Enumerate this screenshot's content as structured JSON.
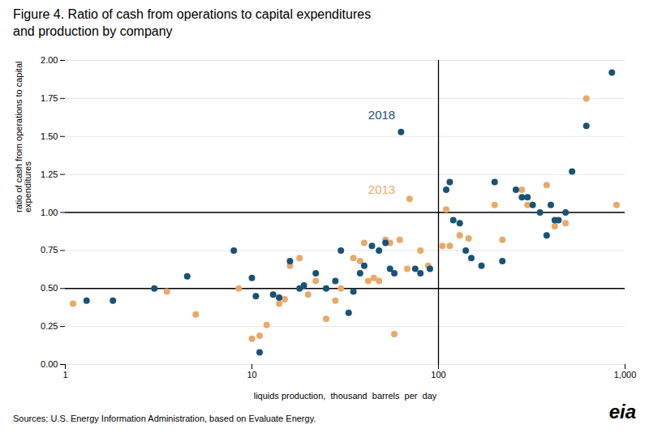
{
  "chart_data": {
    "type": "scatter",
    "title": "Figure 4. Ratio of cash from operations to capital expenditures\nand production by company",
    "xlabel": "liquids production,  thousand  barrels  per  day",
    "ylabel": "ratio of cash from operations to capital\nexpenditures",
    "source": "Sources: U.S. Energy Information Administration, based on Evaluate Energy.",
    "logo": "eia",
    "log": "x",
    "grid": "y",
    "xlim": [
      1,
      1000
    ],
    "xticks": [
      1,
      10,
      100,
      {
        "value": 1000,
        "label": "1,000"
      }
    ],
    "ylim": [
      0.0,
      2.0
    ],
    "yticks": [
      {
        "value": 0.0,
        "label": "0.00"
      },
      0.25,
      {
        "value": 0.5,
        "label": "0.50"
      },
      0.75,
      {
        "value": 1.0,
        "label": "1.00"
      },
      1.25,
      {
        "value": 1.5,
        "label": "1.50"
      },
      1.75,
      {
        "value": 2.0,
        "label": "2.00"
      }
    ],
    "hlines": [
      0.5,
      1.0
    ],
    "vlines": [
      100
    ],
    "annotations": [
      {
        "text": "2018",
        "x": 42,
        "y": 1.615,
        "color": "#1a5276"
      },
      {
        "text": "2013",
        "x": 42,
        "y": 1.125,
        "color": "#e8a96a"
      }
    ],
    "series": [
      {
        "name": "2013",
        "color": "#e8a96a",
        "x": [
          1.1,
          3.5,
          5.0,
          8.5,
          10.0,
          11.0,
          12.0,
          14.0,
          15.0,
          16.0,
          18.0,
          20.0,
          22.0,
          25.0,
          28.0,
          30.0,
          35.0,
          38.0,
          40.0,
          42.0,
          45.0,
          48.0,
          52.0,
          55.0,
          58.0,
          62.0,
          68.0,
          70.0,
          80.0,
          88.0,
          105.0,
          110.0,
          115.0,
          130.0,
          145.0,
          200.0,
          220.0,
          280.0,
          300.0,
          380.0,
          420.0,
          480.0,
          620.0,
          900.0
        ],
        "values": [
          0.4,
          0.48,
          0.33,
          0.5,
          0.17,
          0.19,
          0.26,
          0.4,
          0.43,
          0.65,
          0.7,
          0.46,
          0.55,
          0.3,
          0.42,
          0.5,
          0.7,
          0.68,
          0.8,
          0.55,
          0.57,
          0.55,
          0.82,
          0.8,
          0.2,
          0.82,
          0.63,
          1.09,
          0.75,
          0.65,
          0.78,
          1.02,
          0.78,
          0.85,
          0.83,
          1.05,
          0.82,
          1.15,
          1.05,
          1.18,
          0.91,
          0.93,
          1.75,
          1.05
        ]
      },
      {
        "name": "2018",
        "color": "#1a5276",
        "x": [
          1.3,
          1.8,
          3.0,
          4.5,
          8.0,
          10.0,
          10.5,
          11.0,
          13.0,
          14.0,
          16.0,
          18.0,
          19.0,
          22.0,
          25.0,
          28.0,
          30.0,
          33.0,
          35.0,
          38.0,
          40.0,
          44.0,
          48.0,
          52.0,
          55.0,
          58.0,
          63.0,
          75.0,
          80.0,
          90.0,
          110.0,
          115.0,
          120.0,
          130.0,
          140.0,
          150.0,
          170.0,
          200.0,
          220.0,
          260.0,
          280.0,
          300.0,
          320.0,
          350.0,
          380.0,
          400.0,
          420.0,
          440.0,
          480.0,
          520.0,
          620.0,
          850.0
        ],
        "values": [
          0.42,
          0.42,
          0.5,
          0.58,
          0.75,
          0.57,
          0.45,
          0.08,
          0.46,
          0.44,
          0.68,
          0.5,
          0.52,
          0.6,
          0.5,
          0.55,
          0.75,
          0.34,
          0.48,
          0.6,
          0.65,
          0.78,
          0.75,
          0.8,
          0.63,
          0.6,
          1.53,
          0.63,
          0.6,
          0.63,
          1.15,
          1.2,
          0.95,
          0.93,
          0.75,
          0.7,
          0.65,
          1.2,
          0.68,
          1.15,
          1.1,
          1.1,
          1.05,
          1.0,
          0.85,
          1.05,
          0.95,
          0.95,
          1.0,
          1.27,
          1.57,
          1.92
        ]
      }
    ]
  }
}
